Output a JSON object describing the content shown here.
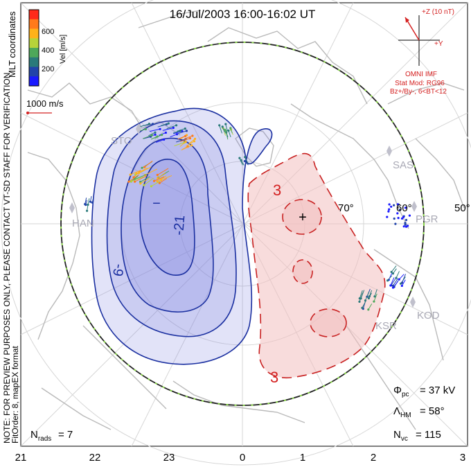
{
  "title": "16/Jul/2003 16:00-16:02 UT",
  "colorbar": {
    "label": "Vel [m/s]",
    "ticks": [
      "600",
      "400",
      "200"
    ],
    "colors": [
      "#ff2a1a",
      "#ff7a1a",
      "#ffb21a",
      "#b7d33a",
      "#4ea85a",
      "#2a7a7a",
      "#2244aa",
      "#1a1aff"
    ]
  },
  "coord_label": "MLT coordinates",
  "velocity_scale": "1000 m/s",
  "imf": {
    "axis_label": "+Z (10 nT)",
    "y_label": "+Y",
    "caption": "OMNI IMF",
    "model_line1": "Stat Mod: RG96",
    "model_line2": "Bz+/By-, 6<BT<12"
  },
  "notes": {
    "line1": "NOTE: FOR PREVIEW PURPOSES ONLY, PLEASE CONTACT VT-SD STAFF FOR VERIFICATION.",
    "line2": "FitOrder: 8, mapEX format"
  },
  "stations": [
    "STO",
    "HAN",
    "SAS",
    "PGR",
    "KOD",
    "KSR"
  ],
  "latitude_labels": [
    "60°",
    "50°",
    "70°"
  ],
  "contour_labels": {
    "neg": [
      "-9",
      "-21"
    ],
    "pos": [
      "3",
      "3"
    ],
    "min_marker": "−",
    "max_marker": "+"
  },
  "stats": {
    "phi_pc_value": "= 37 kV",
    "lambda_hm_value": "= 58°",
    "nvc_value": "= 115",
    "nrads_value": "= 7"
  },
  "mlt_ticks": [
    "21",
    "22",
    "23",
    "0",
    "1",
    "2",
    "3"
  ],
  "colors": {
    "negative_fill": "#7a7fe0",
    "negative_line": "#1a2fa0",
    "positive_fill": "#f2c0c0",
    "positive_line": "#c82020",
    "boundary": "#222222",
    "boundary_dash": "#8fe04a",
    "coast": "#b9b9b9",
    "grid": "#d6d6d6"
  }
}
